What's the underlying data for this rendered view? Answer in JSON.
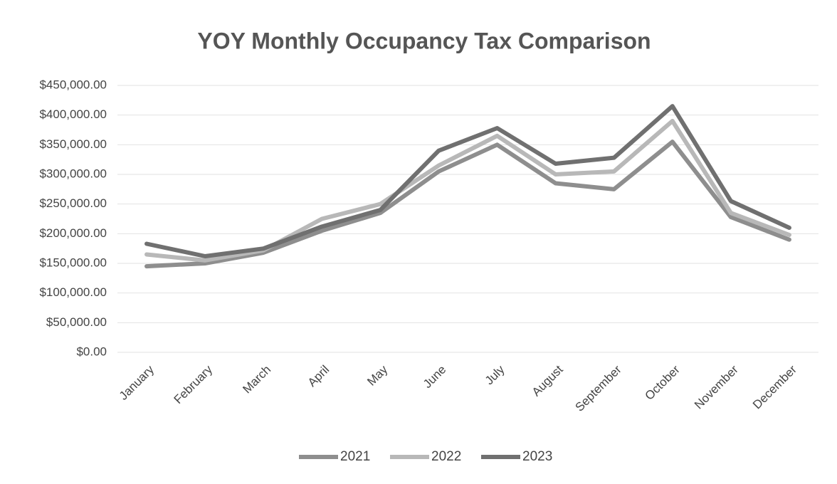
{
  "chart_data": {
    "type": "line",
    "title": "YOY Monthly Occupancy Tax Comparison",
    "categories": [
      "January",
      "February",
      "March",
      "April",
      "May",
      "June",
      "July",
      "August",
      "September",
      "October",
      "November",
      "December"
    ],
    "series": [
      {
        "name": "2021",
        "color": "#8e8e8e",
        "values": [
          145000,
          150000,
          168000,
          205000,
          235000,
          305000,
          350000,
          285000,
          275000,
          355000,
          228000,
          190000
        ]
      },
      {
        "name": "2022",
        "color": "#b8b8b8",
        "values": [
          165000,
          155000,
          172000,
          225000,
          250000,
          315000,
          365000,
          300000,
          305000,
          390000,
          235000,
          198000
        ]
      },
      {
        "name": "2023",
        "color": "#707070",
        "values": [
          183000,
          162000,
          175000,
          212000,
          240000,
          340000,
          378000,
          318000,
          328000,
          415000,
          255000,
          210000
        ]
      }
    ],
    "ylim": [
      0,
      450000
    ],
    "yticks": [
      {
        "value": 0,
        "label": "$0.00"
      },
      {
        "value": 50000,
        "label": "$50,000.00"
      },
      {
        "value": 100000,
        "label": "$100,000.00"
      },
      {
        "value": 150000,
        "label": "$150,000.00"
      },
      {
        "value": 200000,
        "label": "$200,000.00"
      },
      {
        "value": 250000,
        "label": "$250,000.00"
      },
      {
        "value": 300000,
        "label": "$300,000.00"
      },
      {
        "value": 350000,
        "label": "$350,000.00"
      },
      {
        "value": 400000,
        "label": "$400,000.00"
      },
      {
        "value": 450000,
        "label": "$450,000.00"
      }
    ],
    "grid": true,
    "legend": "bottom"
  }
}
